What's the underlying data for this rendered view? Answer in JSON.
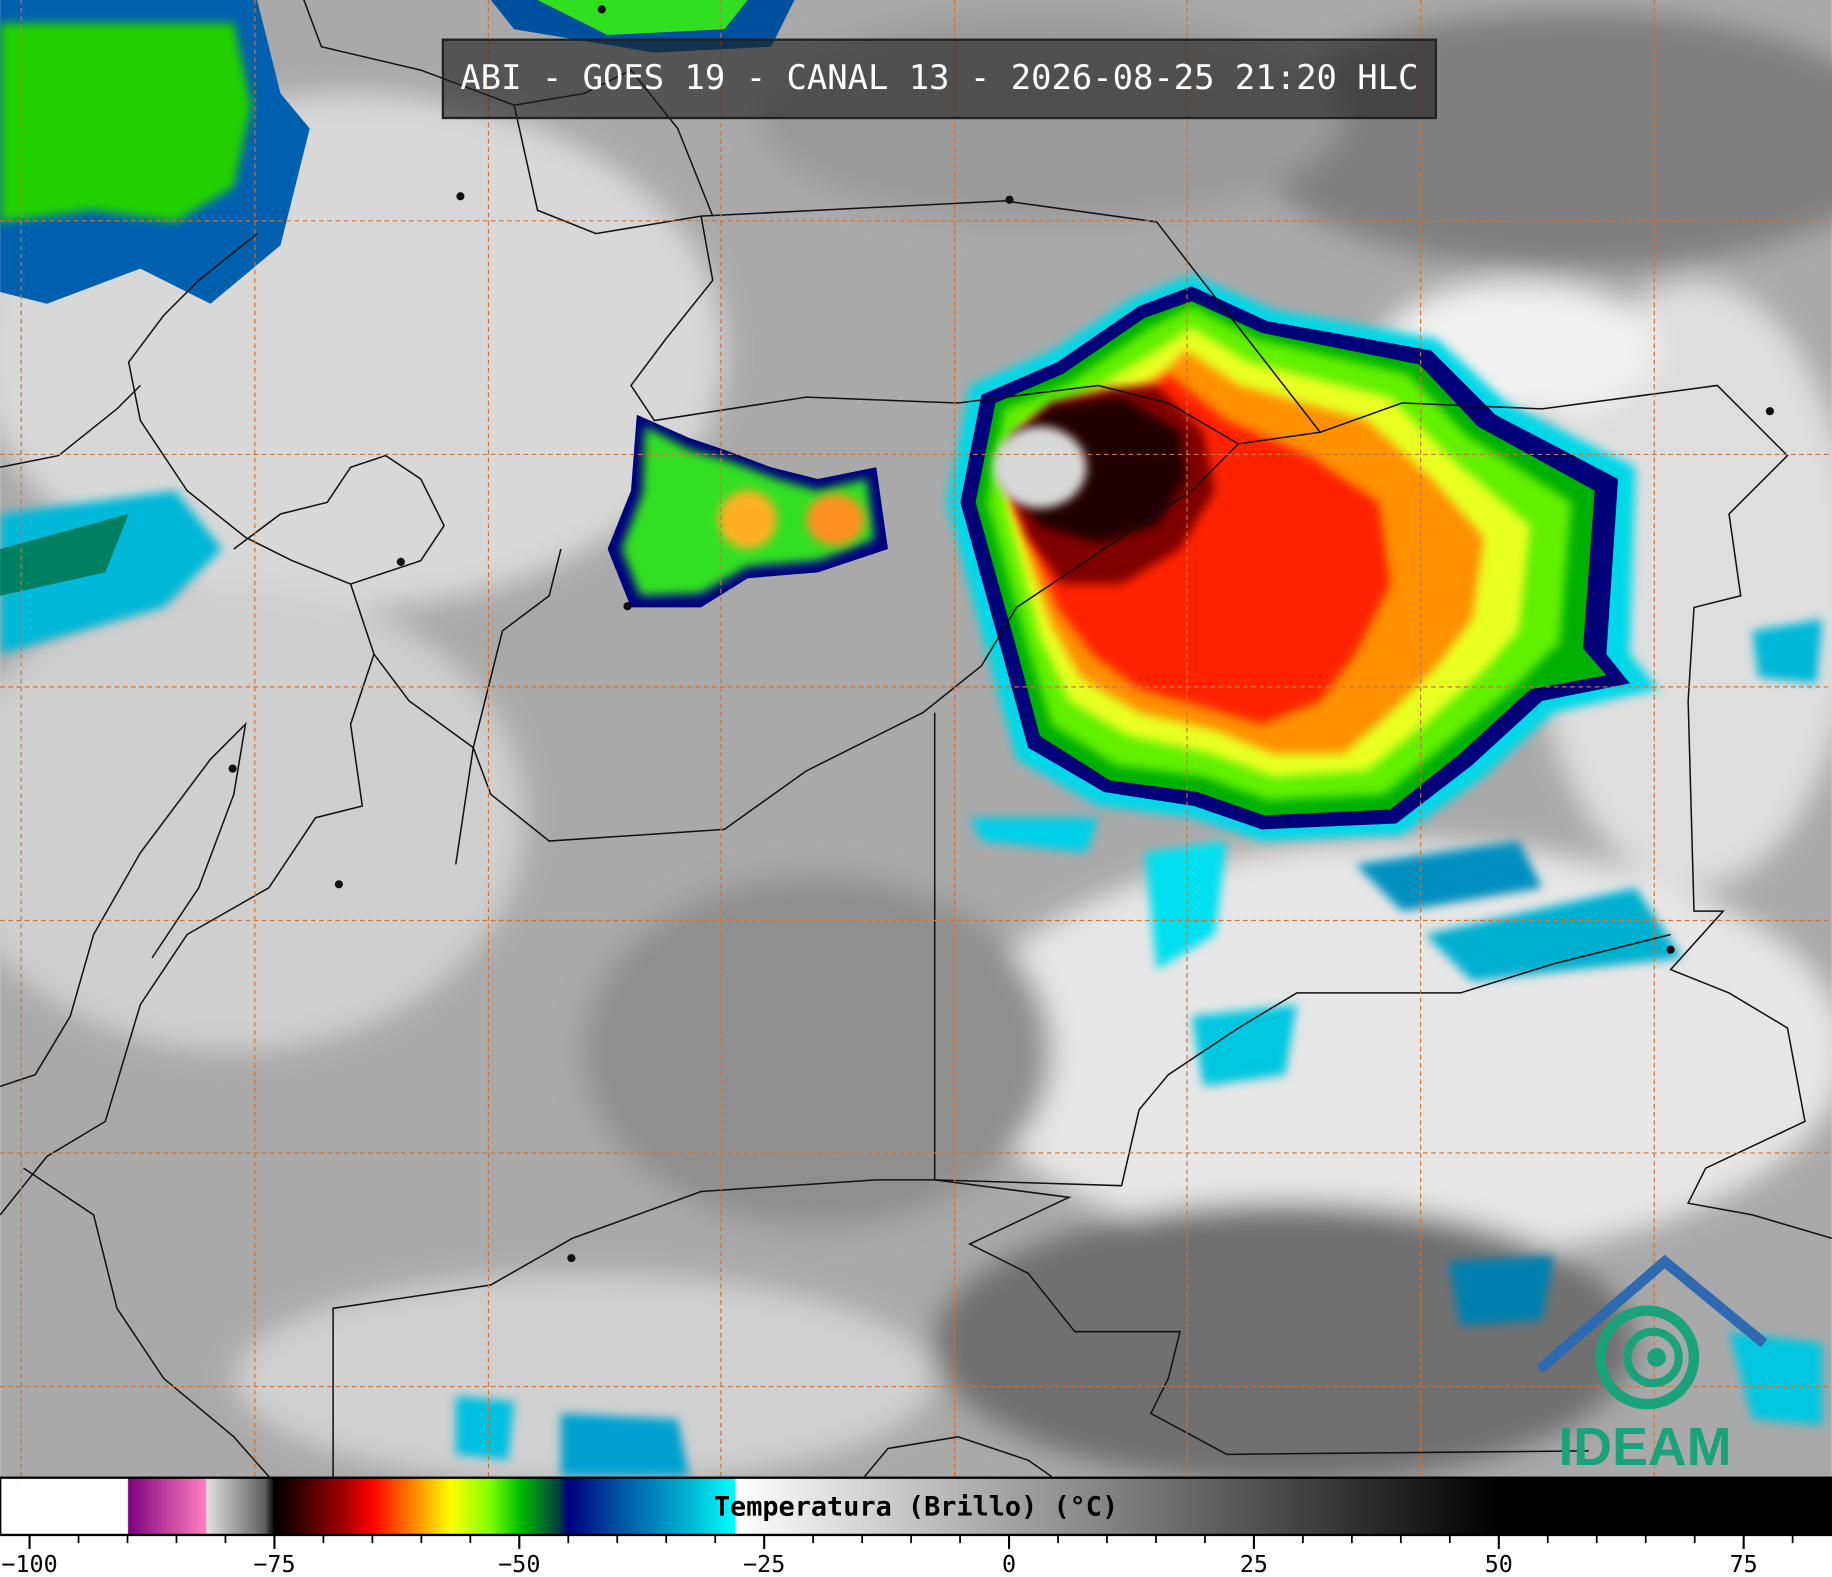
{
  "title": "ABI - GOES 19 - CANAL 13 - 2026-08-25 21:20 HLC",
  "logo": "IDEAM",
  "colorbar": {
    "label": "Temperatura (Brillo) (°C)",
    "range": [
      -103,
      84
    ],
    "ticks": [
      {
        "value": -100,
        "label": "−100"
      },
      {
        "value": -75,
        "label": "−75"
      },
      {
        "value": -50,
        "label": "−50"
      },
      {
        "value": -25,
        "label": "−25"
      },
      0,
      25,
      50,
      75
    ],
    "minor_ticks": [
      -95,
      -90,
      -85,
      -80,
      -70,
      -65,
      -60,
      -55,
      -45,
      -40,
      -35,
      -30,
      -20,
      -15,
      -10,
      -5,
      5,
      10,
      15,
      20,
      30,
      35,
      40,
      45,
      55,
      60,
      65,
      70,
      80
    ],
    "stops": [
      {
        "value": -103,
        "color": "#ffffff"
      },
      {
        "value": -90,
        "color": "#ffffff"
      },
      {
        "value": -89.9,
        "color": "#800080"
      },
      {
        "value": -82,
        "color": "#ff80c0"
      },
      {
        "value": -81.9,
        "color": "#e0e0e0"
      },
      {
        "value": -76,
        "color": "#606060"
      },
      {
        "value": -75,
        "color": "#000000"
      },
      {
        "value": -72,
        "color": "#400000"
      },
      {
        "value": -68,
        "color": "#a00000"
      },
      {
        "value": -65,
        "color": "#ff0000"
      },
      {
        "value": -61,
        "color": "#ff8000"
      },
      {
        "value": -57,
        "color": "#ffff00"
      },
      {
        "value": -53,
        "color": "#80ff00"
      },
      {
        "value": -50,
        "color": "#00c000"
      },
      {
        "value": -46,
        "color": "#004040"
      },
      {
        "value": -45,
        "color": "#000080"
      },
      {
        "value": -40,
        "color": "#0050a0"
      },
      {
        "value": -33,
        "color": "#00b0d0"
      },
      {
        "value": -28,
        "color": "#00ffff"
      },
      {
        "value": -27.9,
        "color": "#ffffff"
      },
      {
        "value": 50,
        "color": "#000000"
      },
      {
        "value": 84,
        "color": "#000000"
      }
    ]
  }
}
